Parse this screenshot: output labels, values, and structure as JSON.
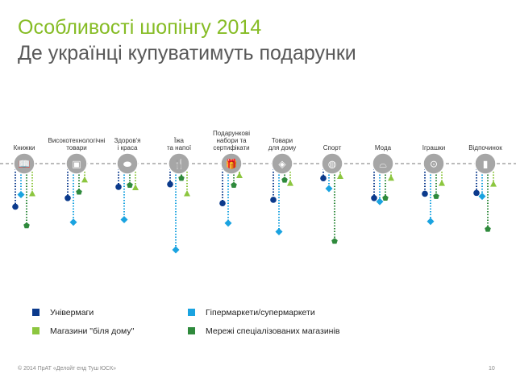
{
  "slide": {
    "title": "Особливості шопінгу 2014",
    "subtitle": "Де українці купуватимуть подарунки",
    "footer": "© 2014 ПрАТ «Делойт енд Туш ЮСК»",
    "page_number": "10"
  },
  "chart_data": {
    "type": "scatter",
    "title": "Де українці купуватимуть подарунки",
    "value_note": "relative depth of marker below baseline (0-100 scale, no axis shown)",
    "ylim": [
      0,
      100
    ],
    "categories": [
      {
        "label": "Книжки",
        "icon": "book-icon"
      },
      {
        "label": "Високотехнологічні\nтовари",
        "icon": "chip-icon"
      },
      {
        "label": "Здоров'я\nі краса",
        "icon": "pill-icon"
      },
      {
        "label": "Їжа\nта напої",
        "icon": "cutlery-icon"
      },
      {
        "label": "Подарункові\nнабори та\nсертифікати",
        "icon": "gift-icon"
      },
      {
        "label": "Товари\nдля дому",
        "icon": "home-goods-icon"
      },
      {
        "label": "Спорт",
        "icon": "ball-icon"
      },
      {
        "label": "Мода",
        "icon": "cloche-icon"
      },
      {
        "label": "Іграшки",
        "icon": "toy-car-icon"
      },
      {
        "label": "Відпочинок",
        "icon": "sunscreen-icon"
      }
    ],
    "series": [
      {
        "name": "Універмаги",
        "color": "#0b3a8c",
        "marker": "circle",
        "values": [
          50,
          40,
          27,
          24,
          46,
          42,
          17,
          40,
          35,
          34
        ]
      },
      {
        "name": "Гіпермаркети/супермаркети",
        "color": "#1aa3e0",
        "marker": "diamond",
        "values": [
          36,
          68,
          65,
          100,
          69,
          79,
          29,
          44,
          67,
          38
        ]
      },
      {
        "name": "Мережі спеціалізованих магазинів",
        "color": "#2f8a3c",
        "marker": "pentagon",
        "values": [
          72,
          33,
          25,
          17,
          25,
          19,
          90,
          40,
          38,
          76
        ]
      },
      {
        "name": "Магазини \"біля дому\"",
        "color": "#8cc63f",
        "marker": "triangle",
        "values": [
          35,
          19,
          28,
          35,
          14,
          23,
          15,
          17,
          23,
          24
        ]
      }
    ],
    "legend": {
      "placement": "bottom-left",
      "order": [
        0,
        1,
        3,
        2
      ]
    }
  }
}
